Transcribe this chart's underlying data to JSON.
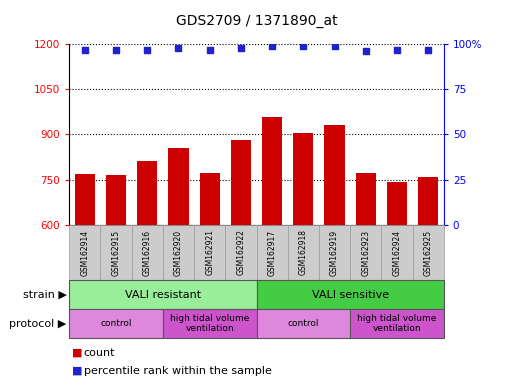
{
  "title": "GDS2709 / 1371890_at",
  "samples": [
    "GSM162914",
    "GSM162915",
    "GSM162916",
    "GSM162920",
    "GSM162921",
    "GSM162922",
    "GSM162917",
    "GSM162918",
    "GSM162919",
    "GSM162923",
    "GSM162924",
    "GSM162925"
  ],
  "counts": [
    770,
    764,
    810,
    855,
    771,
    883,
    958,
    904,
    930,
    773,
    742,
    760
  ],
  "percentile_ranks": [
    97,
    97,
    97,
    98,
    97,
    98,
    99,
    99,
    99,
    96,
    97,
    97
  ],
  "ylim_left": [
    600,
    1200
  ],
  "ylim_right": [
    0,
    100
  ],
  "yticks_left": [
    600,
    750,
    900,
    1050,
    1200
  ],
  "yticks_right": [
    0,
    25,
    50,
    75,
    100
  ],
  "bar_color": "#cc0000",
  "dot_color": "#2222cc",
  "bar_width": 0.65,
  "strain_groups": [
    {
      "label": "VALI resistant",
      "start": 0,
      "end": 6,
      "color": "#99ee99"
    },
    {
      "label": "VALI sensitive",
      "start": 6,
      "end": 12,
      "color": "#44cc44"
    }
  ],
  "protocol_groups": [
    {
      "label": "control",
      "start": 0,
      "end": 3,
      "color": "#dd88dd"
    },
    {
      "label": "high tidal volume\nventilation",
      "start": 3,
      "end": 6,
      "color": "#cc55cc"
    },
    {
      "label": "control",
      "start": 6,
      "end": 9,
      "color": "#dd88dd"
    },
    {
      "label": "high tidal volume\nventilation",
      "start": 9,
      "end": 12,
      "color": "#cc55cc"
    }
  ],
  "legend_count_color": "#cc0000",
  "legend_dot_color": "#2222cc",
  "background_color": "#ffffff",
  "tick_label_bg": "#cccccc",
  "grid_color": "#000000",
  "strain_label": "strain",
  "protocol_label": "protocol"
}
